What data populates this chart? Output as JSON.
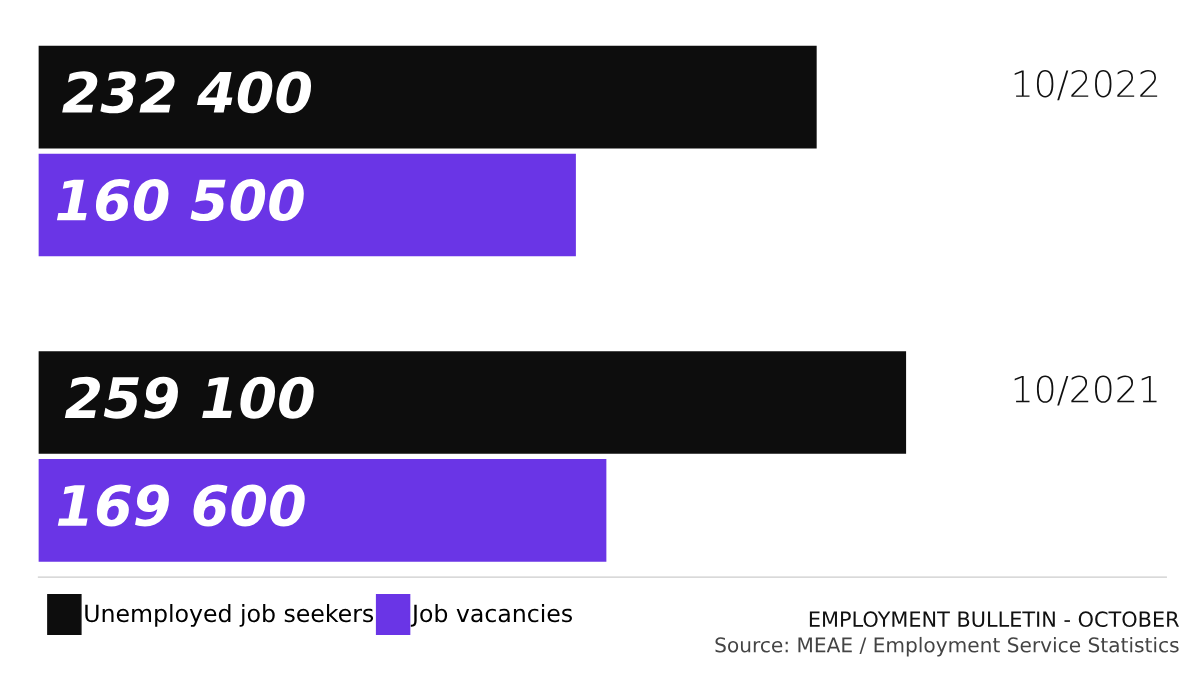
{
  "chart_data": {
    "type": "bar",
    "orientation": "horizontal",
    "categories": [
      "10/2022",
      "10/2021"
    ],
    "series": [
      {
        "name": "Unemployed job seekers",
        "color": "#0d0d0d",
        "values": [
          232400,
          259100
        ],
        "value_labels": [
          "232 400",
          "259 100"
        ]
      },
      {
        "name": "Job vacancies",
        "color": "#6a35e6",
        "values": [
          160500,
          169600
        ],
        "value_labels": [
          "160 500",
          "169 600"
        ]
      }
    ],
    "legend": "bottom left",
    "grid": false,
    "tick_labels": false,
    "annotations": [
      "EMPLOYMENT BULLETIN - OCTOBER",
      "Source: MEAE / Employment Service Statistics"
    ]
  }
}
